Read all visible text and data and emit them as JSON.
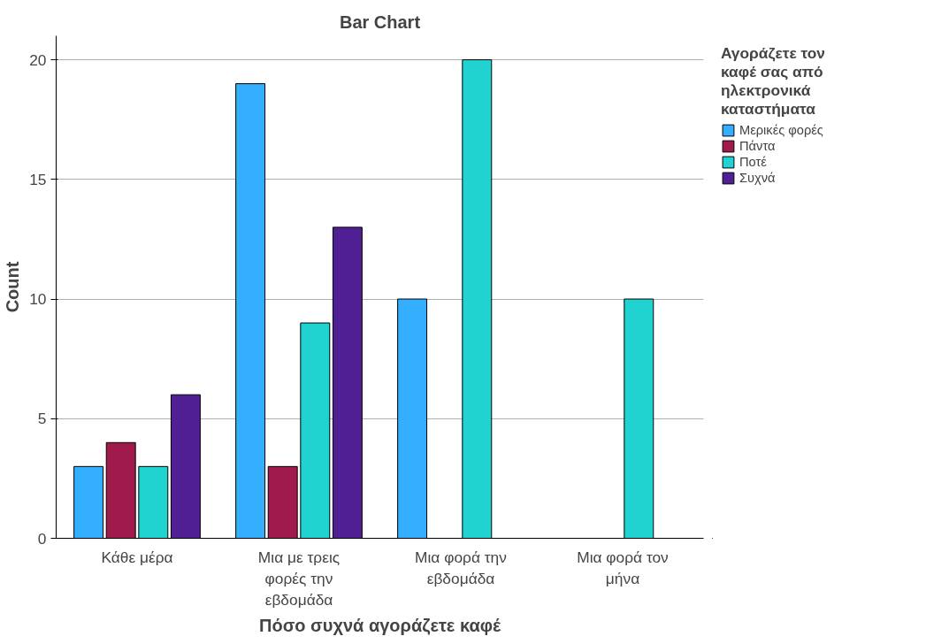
{
  "chart_data": {
    "type": "bar",
    "title": "Bar Chart",
    "xlabel": "Πόσο συχνά αγοράζετε καφέ",
    "ylabel": "Count",
    "legend_title": "Αγοράζετε τον καφέ σας από ηλεκτρονικά καταστήματα",
    "categories": [
      "Κάθε μέρα",
      "Μια με τρεις φορές την εβδομάδα",
      "Μια φορά την εβδομάδα",
      "Μια φορά τον μήνα"
    ],
    "series": [
      {
        "name": "Μερικές φορές",
        "color": "#34aefe",
        "values": [
          3,
          19,
          10,
          null
        ]
      },
      {
        "name": "Πάντα",
        "color": "#a01a4c",
        "values": [
          4,
          3,
          null,
          null
        ]
      },
      {
        "name": "Ποτέ",
        "color": "#20d3d1",
        "values": [
          3,
          9,
          20,
          10
        ]
      },
      {
        "name": "Συχνά",
        "color": "#4f1f93",
        "values": [
          6,
          13,
          null,
          null
        ]
      }
    ],
    "ylim": [
      0,
      21
    ],
    "yticks": [
      0,
      5,
      10,
      15,
      20
    ],
    "grid": "y",
    "legend": "right"
  }
}
